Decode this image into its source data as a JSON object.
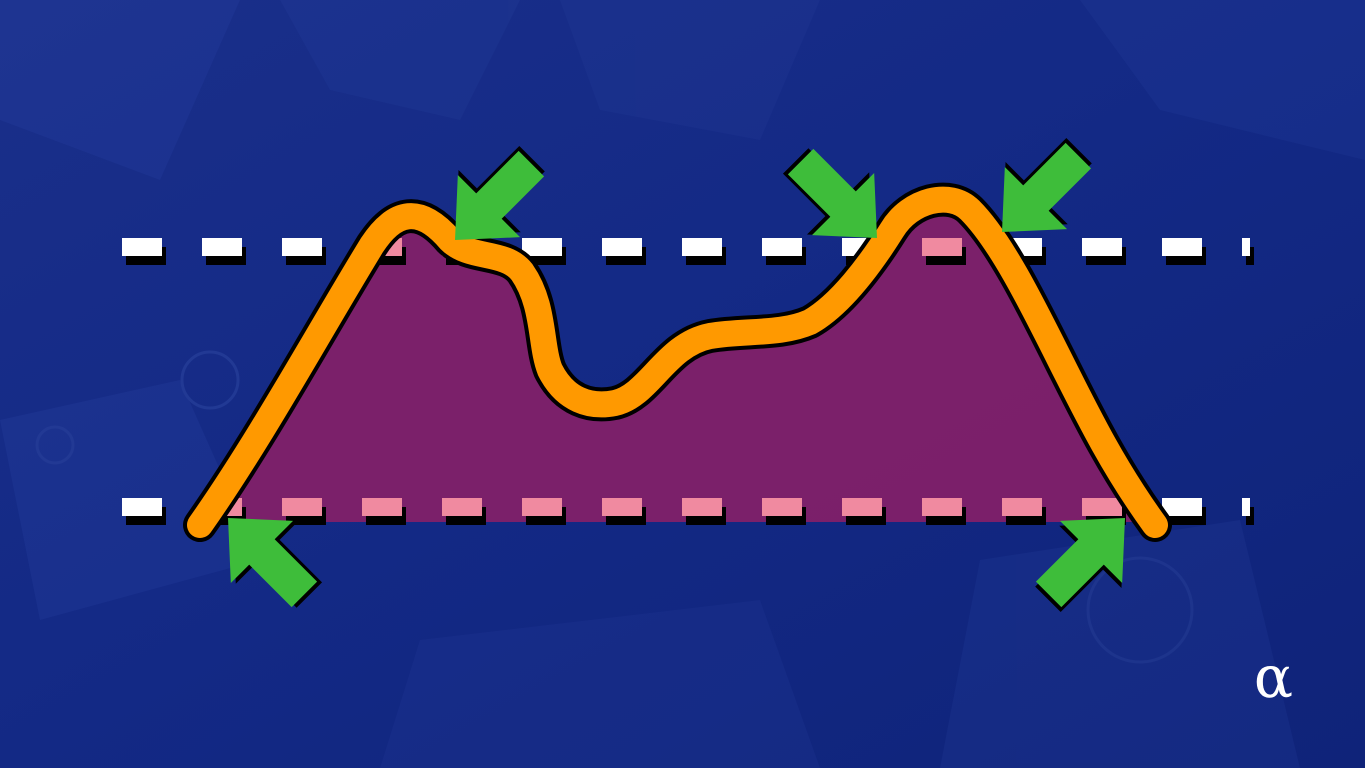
{
  "colors": {
    "background": "#12287e",
    "background_light": "#1d3a96",
    "curve": "#ff9900",
    "fill": "#8a1f66",
    "dash_white": "#ffffff",
    "dash_pink": "#f08aa0",
    "arrow": "#3ebd3a",
    "outline": "#000000"
  },
  "arrows": [
    {
      "name": "arrow-top-left",
      "direction": "down-left"
    },
    {
      "name": "arrow-top-middle",
      "direction": "down-right"
    },
    {
      "name": "arrow-top-right",
      "direction": "down-left"
    },
    {
      "name": "arrow-bottom-left",
      "direction": "up-left"
    },
    {
      "name": "arrow-bottom-right",
      "direction": "up-right"
    }
  ],
  "logo": {
    "symbol": "α"
  }
}
